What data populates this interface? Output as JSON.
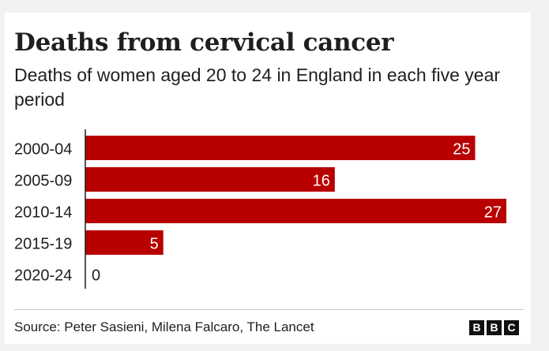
{
  "chart_data": {
    "type": "bar",
    "orientation": "horizontal",
    "title": "Deaths from cervical cancer",
    "subtitle": "Deaths of women aged 20 to 24 in England in each five year period",
    "categories": [
      "2000-04",
      "2005-09",
      "2010-14",
      "2015-19",
      "2020-24"
    ],
    "values": [
      25,
      16,
      27,
      5,
      0
    ],
    "xlim": [
      0,
      27
    ],
    "grid": false,
    "data_labels": true,
    "bar_color": "#b80000",
    "axis_color": "#1f1f1f"
  },
  "footer": {
    "source": "Source: Peter Sasieni, Milena Falcaro, The Lancet",
    "logo_letters": [
      "B",
      "B",
      "C"
    ]
  }
}
